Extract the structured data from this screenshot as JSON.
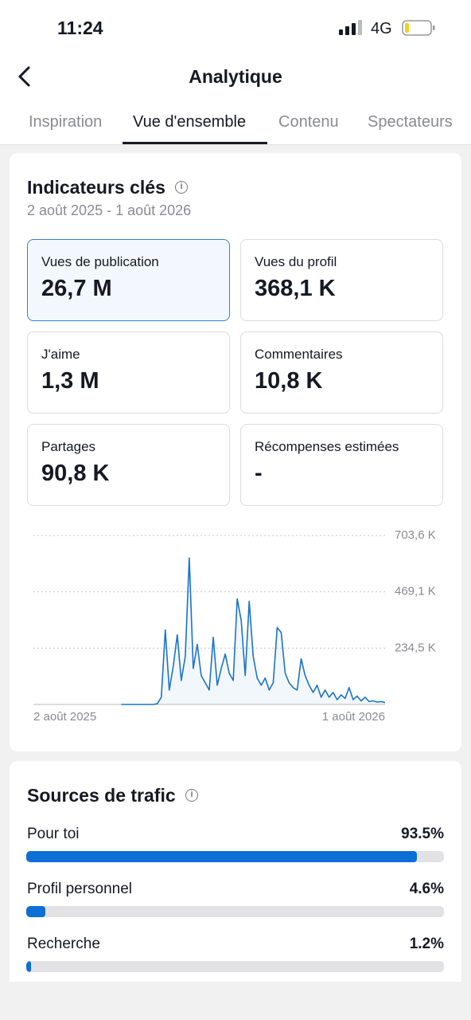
{
  "status": {
    "time": "11:24",
    "network": "4G"
  },
  "header": {
    "title": "Analytique"
  },
  "tabs": [
    "Inspiration",
    "Vue d'ensemble",
    "Contenu",
    "Spectateurs"
  ],
  "key_indicators": {
    "title": "Indicateurs clés",
    "date_range": "2 août 2025 - 1 août 2026",
    "cards": [
      {
        "label": "Vues de publication",
        "value": "26,7 M"
      },
      {
        "label": "Vues du profil",
        "value": "368,1 K"
      },
      {
        "label": "J'aime",
        "value": "1,3 M"
      },
      {
        "label": "Commentaires",
        "value": "10,8 K"
      },
      {
        "label": "Partages",
        "value": "90,8 K"
      },
      {
        "label": "Récompenses estimées",
        "value": "-"
      }
    ]
  },
  "chart_data": {
    "type": "line",
    "categories": [
      "2 août 2025",
      null,
      null,
      null,
      null,
      null,
      null,
      null,
      null,
      null,
      null,
      null,
      null,
      null,
      null,
      null,
      null,
      null,
      null,
      null,
      null,
      null,
      null,
      null,
      null,
      null,
      null,
      null,
      null,
      null,
      null,
      null,
      null,
      null,
      null,
      null,
      null,
      null,
      null,
      null,
      null,
      null,
      null,
      null,
      null,
      null,
      null,
      null,
      null,
      null,
      null,
      null,
      null,
      null,
      null,
      null,
      null,
      null,
      null,
      null,
      null,
      null,
      null,
      null,
      null,
      null,
      null,
      null,
      null,
      null,
      null,
      null,
      null,
      null,
      null,
      null,
      null,
      null,
      null,
      null,
      null,
      null,
      null,
      null,
      null,
      null,
      null,
      null,
      "1 août 2026"
    ],
    "series": [
      {
        "color": "#1a73c9",
        "values": [
          null,
          null,
          null,
          null,
          null,
          null,
          null,
          null,
          null,
          null,
          null,
          null,
          null,
          null,
          null,
          null,
          null,
          null,
          null,
          null,
          null,
          null,
          0,
          0,
          0,
          0,
          0,
          0,
          0,
          0,
          0,
          3000,
          30000,
          310000,
          60000,
          160000,
          290000,
          100000,
          200000,
          610000,
          150000,
          250000,
          120000,
          90000,
          60000,
          280000,
          80000,
          150000,
          210000,
          130000,
          100000,
          440000,
          350000,
          120000,
          430000,
          200000,
          110000,
          80000,
          110000,
          60000,
          90000,
          320000,
          300000,
          130000,
          90000,
          70000,
          60000,
          190000,
          120000,
          80000,
          50000,
          80000,
          30000,
          60000,
          30000,
          50000,
          20000,
          40000,
          25000,
          70000,
          20000,
          35000,
          15000,
          30000,
          12000,
          15000,
          10000,
          12000,
          8000
        ]
      }
    ],
    "ylim": [
      0,
      703600
    ],
    "yticks": [
      {
        "value": 234500,
        "label": "234,5 K"
      },
      {
        "value": 469100,
        "label": "469,1 K"
      },
      {
        "value": 703600,
        "label": "703,6 K"
      }
    ],
    "grid": true
  },
  "traffic_sources": {
    "title": "Sources de trafic",
    "color": "#0b6fd6",
    "items": [
      {
        "name": "Pour toi",
        "value": 93.5,
        "value_label": "93.5%"
      },
      {
        "name": "Profil personnel",
        "value": 4.6,
        "value_label": "4.6%"
      },
      {
        "name": "Recherche",
        "value": 1.2,
        "value_label": "1.2%"
      }
    ]
  }
}
